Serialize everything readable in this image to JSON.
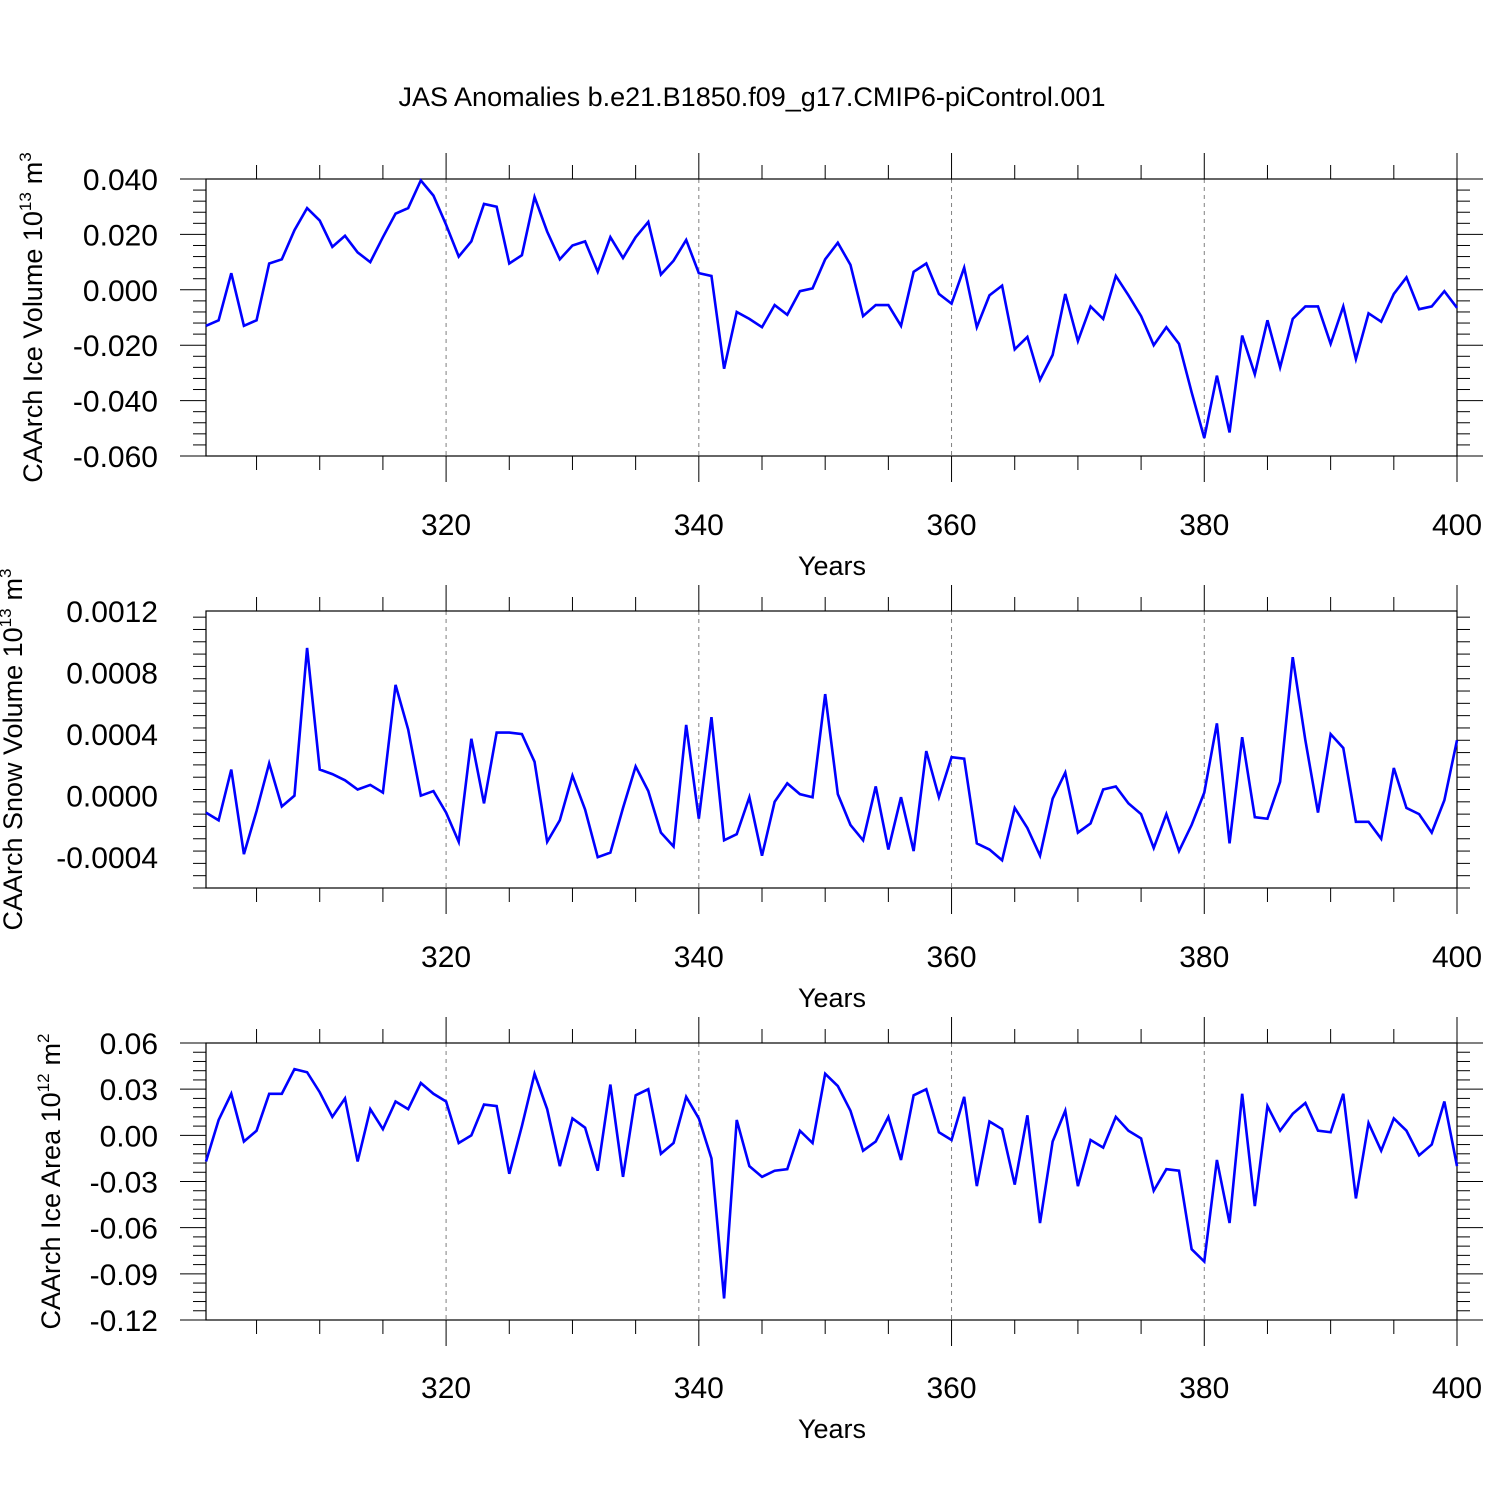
{
  "title": "JAS Anomalies b.e21.B1850.f09_g17.CMIP6-piControl.001",
  "colors": {
    "line": "#0000ff",
    "axis": "#000000",
    "grid": "#808080"
  },
  "chart_data": [
    {
      "type": "line",
      "ylabel_main": "CAArch Ice Volume 10",
      "ylabel_exp": "13",
      "ylabel_unit": "m",
      "ylabel_unit_exp": "3",
      "xlabel": "Years",
      "xlim": [
        301,
        400
      ],
      "ylim": [
        -0.06,
        0.04
      ],
      "yticks": [
        -0.06,
        -0.04,
        -0.02,
        0.0,
        0.02,
        0.04
      ],
      "ytick_labels": [
        "-0.060",
        "-0.040",
        "-0.020",
        "0.000",
        "0.020",
        "0.040"
      ],
      "xticks": [
        320,
        340,
        360,
        380,
        400
      ],
      "xtick_labels": [
        "320",
        "340",
        "360",
        "380",
        "400"
      ],
      "x_start": 301,
      "values": [
        -0.013,
        -0.011,
        0.006,
        -0.013,
        -0.011,
        0.0095,
        0.011,
        0.0215,
        0.0295,
        0.025,
        0.0155,
        0.0195,
        0.0135,
        0.01,
        0.019,
        0.0275,
        0.0295,
        0.0395,
        0.034,
        0.0235,
        0.012,
        0.0175,
        0.031,
        0.03,
        0.0095,
        0.0125,
        0.0335,
        0.021,
        0.011,
        0.016,
        0.0175,
        0.0065,
        0.019,
        0.0115,
        0.019,
        0.0245,
        0.0055,
        0.0105,
        0.018,
        0.006,
        0.005,
        -0.0285,
        -0.008,
        -0.0105,
        -0.0135,
        -0.0055,
        -0.009,
        -0.0005,
        0.0005,
        0.011,
        0.017,
        0.009,
        -0.0095,
        -0.0055,
        -0.0055,
        -0.013,
        0.0065,
        0.0095,
        -0.0015,
        -0.005,
        0.008,
        -0.0135,
        -0.002,
        0.0015,
        -0.0215,
        -0.017,
        -0.0325,
        -0.0235,
        -0.0015,
        -0.0185,
        -0.006,
        -0.0105,
        0.005,
        -0.002,
        -0.0095,
        -0.02,
        -0.0135,
        -0.0195,
        -0.037,
        -0.0535,
        -0.031,
        -0.0515,
        -0.0165,
        -0.0305,
        -0.011,
        -0.028,
        -0.0105,
        -0.006,
        -0.006,
        -0.0195,
        -0.006,
        -0.025,
        -0.0085,
        -0.0115,
        -0.0015,
        0.0045,
        -0.007,
        -0.006,
        -0.0005,
        -0.0065
      ]
    },
    {
      "type": "line",
      "ylabel_main": "CAArch Snow Volume 10",
      "ylabel_exp": "13",
      "ylabel_unit": "m",
      "ylabel_unit_exp": "3",
      "xlabel": "Years",
      "xlim": [
        301,
        400
      ],
      "ylim": [
        -0.0006,
        0.0012
      ],
      "yticks": [
        -0.0004,
        0.0,
        0.0004,
        0.0008,
        0.0012
      ],
      "ytick_labels": [
        "-0.0004",
        "0.0000",
        "0.0004",
        "0.0008",
        "0.0012"
      ],
      "xticks": [
        320,
        340,
        360,
        380,
        400
      ],
      "xtick_labels": [
        "320",
        "340",
        "360",
        "380",
        "400"
      ],
      "x_start": 301,
      "values": [
        -0.00011,
        -0.00016,
        0.00017,
        -0.00038,
        -0.0001,
        0.00021,
        -7e-05,
        0.0,
        0.00096,
        0.00017,
        0.00014,
        0.0001,
        4e-05,
        7e-05,
        2e-05,
        0.00072,
        0.00043,
        0.0,
        3e-05,
        -0.00011,
        -0.0003,
        0.00037,
        -5e-05,
        0.00041,
        0.00041,
        0.0004,
        0.00022,
        -0.0003,
        -0.00016,
        0.00013,
        -9e-05,
        -0.0004,
        -0.00037,
        -8e-05,
        0.00019,
        3e-05,
        -0.00024,
        -0.00033,
        0.00046,
        -0.00015,
        0.00051,
        -0.00029,
        -0.00025,
        -1e-05,
        -0.00039,
        -4e-05,
        8e-05,
        1e-05,
        -1e-05,
        0.00066,
        1e-05,
        -0.00019,
        -0.00029,
        6e-05,
        -0.00035,
        -1e-05,
        -0.00036,
        0.00029,
        -1e-05,
        0.00025,
        0.00024,
        -0.00031,
        -0.00035,
        -0.00042,
        -8e-05,
        -0.00021,
        -0.00039,
        -2e-05,
        0.00015,
        -0.00024,
        -0.00018,
        4e-05,
        6e-05,
        -5e-05,
        -0.00012,
        -0.00034,
        -0.00012,
        -0.00036,
        -0.00019,
        2e-05,
        0.00047,
        -0.00031,
        0.00038,
        -0.00014,
        -0.00015,
        9e-05,
        0.0009,
        0.00036,
        -0.00011,
        0.0004,
        0.00031,
        -0.00017,
        -0.00017,
        -0.00028,
        0.00018,
        -8e-05,
        -0.00012,
        -0.00024,
        -3e-05,
        0.00036
      ]
    },
    {
      "type": "line",
      "ylabel_main": "CAArch Ice Area 10",
      "ylabel_exp": "12",
      "ylabel_unit": "m",
      "ylabel_unit_exp": "2",
      "xlabel": "Years",
      "xlim": [
        301,
        400
      ],
      "ylim": [
        -0.12,
        0.06
      ],
      "yticks": [
        -0.12,
        -0.09,
        -0.06,
        -0.03,
        0.0,
        0.03,
        0.06
      ],
      "ytick_labels": [
        "-0.12",
        "-0.09",
        "-0.06",
        "-0.03",
        "0.00",
        "0.03",
        "0.06"
      ],
      "xticks": [
        320,
        340,
        360,
        380,
        400
      ],
      "xtick_labels": [
        "320",
        "340",
        "360",
        "380",
        "400"
      ],
      "x_start": 301,
      "values": [
        -0.017,
        0.01,
        0.027,
        -0.004,
        0.003,
        0.027,
        0.027,
        0.043,
        0.041,
        0.028,
        0.012,
        0.024,
        -0.017,
        0.017,
        0.004,
        0.022,
        0.017,
        0.034,
        0.027,
        0.022,
        -0.005,
        0.0,
        0.02,
        0.019,
        -0.025,
        0.006,
        0.04,
        0.017,
        -0.02,
        0.011,
        0.005,
        -0.023,
        0.033,
        -0.027,
        0.026,
        0.03,
        -0.012,
        -0.005,
        0.025,
        0.011,
        -0.015,
        -0.106,
        0.01,
        -0.02,
        -0.027,
        -0.023,
        -0.022,
        0.003,
        -0.005,
        0.04,
        0.032,
        0.016,
        -0.01,
        -0.004,
        0.012,
        -0.016,
        0.026,
        0.03,
        0.002,
        -0.003,
        0.025,
        -0.033,
        0.009,
        0.004,
        -0.032,
        0.013,
        -0.057,
        -0.004,
        0.016,
        -0.033,
        -0.003,
        -0.008,
        0.012,
        0.003,
        -0.002,
        -0.036,
        -0.022,
        -0.023,
        -0.074,
        -0.082,
        -0.016,
        -0.057,
        0.027,
        -0.046,
        0.019,
        0.003,
        0.014,
        0.021,
        0.003,
        0.002,
        0.027,
        -0.041,
        0.008,
        -0.01,
        0.011,
        0.003,
        -0.013,
        -0.006,
        0.022,
        -0.02
      ]
    }
  ]
}
